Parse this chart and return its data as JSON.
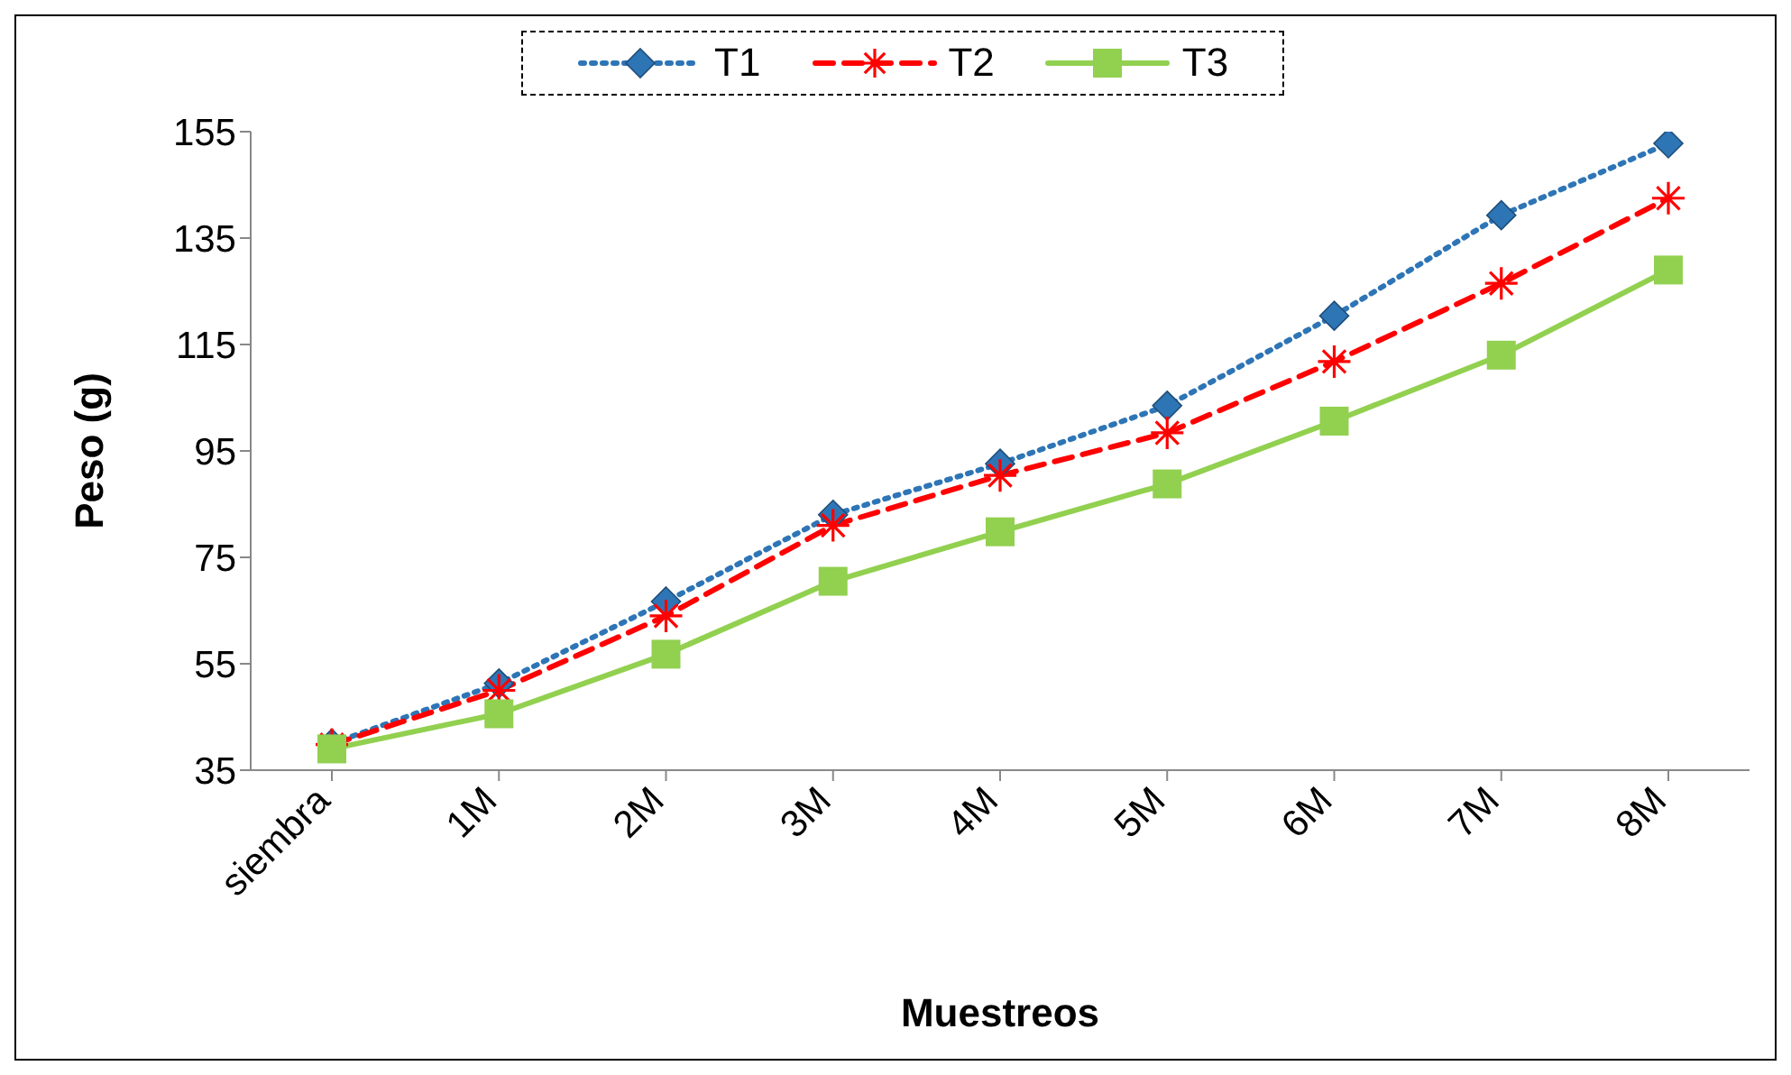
{
  "chart_data": {
    "type": "line",
    "xlabel": "Muestreos",
    "ylabel": "Peso (g)",
    "categories": [
      "siembra",
      "1M",
      "2M",
      "3M",
      "4M",
      "5M",
      "6M",
      "7M",
      "8M"
    ],
    "series": [
      {
        "name": "T1",
        "color": "#2e75b6",
        "marker": "diamond",
        "line_style": "dotted",
        "values": [
          40,
          51.3,
          66.7,
          83,
          92.6,
          103.5,
          120.4,
          139.3,
          152.8
        ]
      },
      {
        "name": "T2",
        "color": "#ff0000",
        "marker": "cross",
        "line_style": "dashed",
        "values": [
          39.8,
          50,
          64,
          81,
          90.4,
          98.4,
          111.8,
          126.5,
          142.5
        ]
      },
      {
        "name": "T3",
        "color": "#92d050",
        "marker": "square",
        "line_style": "solid",
        "values": [
          39,
          45.6,
          56.8,
          70.5,
          79.8,
          88.8,
          100.6,
          113,
          129
        ]
      }
    ],
    "ylim": [
      35,
      155
    ],
    "yticks": [
      35,
      55,
      75,
      95,
      115,
      135,
      155
    ],
    "grid": false,
    "legend": "top"
  }
}
